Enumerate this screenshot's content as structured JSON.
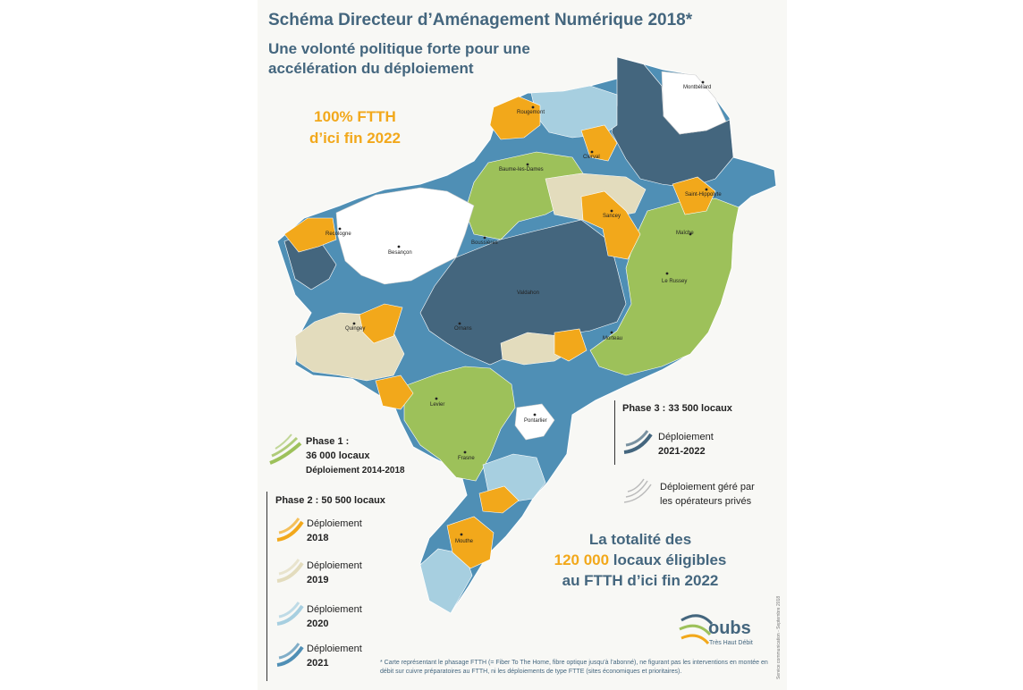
{
  "header": {
    "title": "Schéma Directeur d’Aménagement Numérique 2018*",
    "subtitle": "Une volonté politique forte pour une accélération du déploiement"
  },
  "highlight": {
    "line1": "100% FTTH",
    "line2": "d’ici fin 2022"
  },
  "colors": {
    "phase1": "#9dc15a",
    "phase2_2018": "#f2a81b",
    "phase2_2019": "#e3dcbd",
    "phase2_2020": "#a7cfe0",
    "phase2_2021": "#4f8fb5",
    "phase3": "#44667e",
    "private": "#ffffff"
  },
  "cities": [
    "Montbéliard",
    "Rougemont",
    "Clerval",
    "Baume-les-Dames",
    "Saint-Hippolyte",
    "Sancey",
    "Recologne",
    "Maîche",
    "Besançon",
    "Boussières",
    "Le Russey",
    "Valdahon",
    "Quingey",
    "Ornans",
    "Morteau",
    "Levier",
    "Pontarlier",
    "Frasne",
    "Mouthe"
  ],
  "legend": {
    "phase1": {
      "title": "Phase 1 :",
      "count": "36 000 locaux",
      "period": "Déploiement 2014-2018"
    },
    "phase2": {
      "title": "Phase 2 : 50 500 locaux",
      "items": [
        {
          "label": "Déploiement",
          "year": "2018"
        },
        {
          "label": "Déploiement",
          "year": "2019"
        },
        {
          "label": "Déploiement",
          "year": "2020"
        },
        {
          "label": "Déploiement",
          "year": "2021"
        }
      ]
    },
    "phase3": {
      "title": "Phase 3 : 33 500 locaux",
      "label": "Déploiement",
      "period": "2021-2022"
    },
    "private": {
      "line1": "Déploiement géré par",
      "line2": "les opérateurs privés"
    }
  },
  "total": {
    "line1": "La totalité des",
    "count": "120 000",
    "line2_rest": " locaux éligibles",
    "line3": "au FTTH d’ici fin 2022"
  },
  "logo": {
    "name": "oubs",
    "tagline": "Très Haut Débit"
  },
  "footnote": "* Carte représentant le phasage FTTH (= Fiber To The Home, fibre optique jusqu’à l’abonné), ne figurant pas les interventions en montée en débit sur cuivre préparatoires au FTTH, ni les déploiements de type FTTE (sites économiques et prioritaires).",
  "side_note": "Service communication - Septembre 2018"
}
